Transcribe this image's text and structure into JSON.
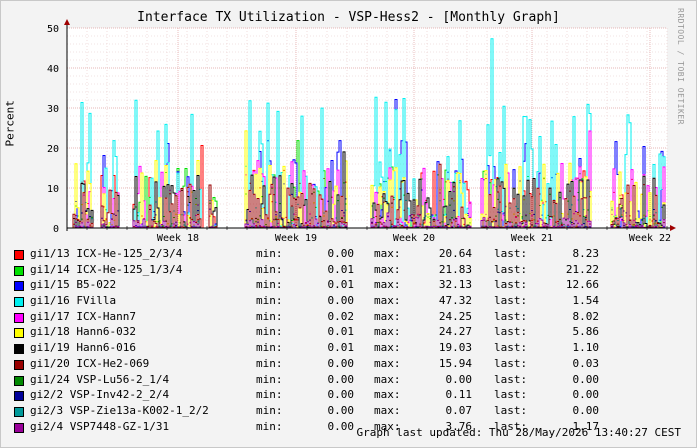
{
  "title": "Interface TX Utilization - VSP-Hess2 - [Monthly Graph]",
  "ylabel": "Percent",
  "watermark": "RRDTOOL / TOBI OETIKER",
  "labels": {
    "min": "min:",
    "max": "max:",
    "last": "last:"
  },
  "updated": "Graph last updated: Thu 28/May/2026 13:40:27 CEST",
  "chart_data": {
    "type": "line",
    "title": "Interface TX Utilization - VSP-Hess2 - [Monthly Graph]",
    "ylabel": "Percent",
    "ylim": [
      0,
      50
    ],
    "yticks": [
      0,
      10,
      20,
      30,
      40,
      50
    ],
    "xticks": [
      "Week 18",
      "Week 19",
      "Week 20",
      "Week 21",
      "Week 22"
    ],
    "grid": true,
    "series": [
      {
        "name": "gi1/13 ICX-He-125_2/3/4",
        "color": "#ff0000",
        "min": "0.00",
        "max": "20.64",
        "last": "8.23",
        "peak": 20.64
      },
      {
        "name": "gi1/14 ICX-He-125_1/3/4",
        "color": "#00e000",
        "min": "0.01",
        "max": "21.83",
        "last": "21.22",
        "peak": 21.83
      },
      {
        "name": "gi1/15 B5-022",
        "color": "#0000ff",
        "min": "0.01",
        "max": "32.13",
        "last": "12.66",
        "peak": 32.13
      },
      {
        "name": "gi1/16 FVilla",
        "color": "#00f0f0",
        "min": "0.00",
        "max": "47.32",
        "last": "1.54",
        "peak": 47.32
      },
      {
        "name": "gi1/17 ICX-Hann7",
        "color": "#ff00ff",
        "min": "0.02",
        "max": "24.25",
        "last": "8.02",
        "peak": 24.25
      },
      {
        "name": "gi1/18 Hann6-032",
        "color": "#ffff00",
        "min": "0.01",
        "max": "24.27",
        "last": "5.86",
        "peak": 24.27
      },
      {
        "name": "gi1/19 Hann6-016",
        "color": "#000000",
        "min": "0.01",
        "max": "19.03",
        "last": "1.10",
        "peak": 19.03
      },
      {
        "name": "gi1/20 ICX-He2-069",
        "color": "#990000",
        "min": "0.00",
        "max": "15.94",
        "last": "0.03",
        "peak": 15.94
      },
      {
        "name": "gi1/24 VSP-Lu56-2_1/4",
        "color": "#008800",
        "min": "0.00",
        "max": "0.00",
        "last": "0.00",
        "peak": 0.0
      },
      {
        "name": "gi2/2 VSP-Inv42-2_2/4",
        "color": "#000099",
        "min": "0.00",
        "max": "0.11",
        "last": "0.00",
        "peak": 0.11
      },
      {
        "name": "gi2/3 VSP-Zie13a-K002-1_2/2",
        "color": "#009999",
        "min": "0.00",
        "max": "0.07",
        "last": "0.00",
        "peak": 0.07
      },
      {
        "name": "gi2/4 VSP7448-GZ-1/31",
        "color": "#990099",
        "min": "0.00",
        "max": "3.76",
        "last": "1.17",
        "peak": 3.76
      }
    ]
  }
}
